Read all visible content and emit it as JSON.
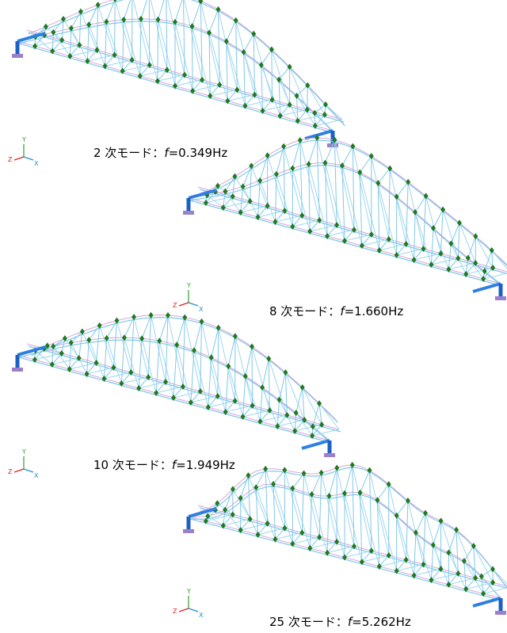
{
  "panels": [
    {
      "caption": {
        "mode": "2 次モード：",
        "symbol": "f",
        "value": "=0.349Hz"
      },
      "axes": {
        "y": "Y",
        "z": "Z",
        "x": "X"
      }
    },
    {
      "caption": {
        "mode": "8 次モード：",
        "symbol": "f",
        "value": "=1.660Hz"
      },
      "axes": {
        "y": "Y",
        "z": "Z",
        "x": "X"
      }
    },
    {
      "caption": {
        "mode": "10 次モード：",
        "symbol": "f",
        "value": "=1.949Hz"
      },
      "axes": {
        "y": "Y",
        "z": "Z",
        "x": "X"
      }
    },
    {
      "caption": {
        "mode": "25 次モード：",
        "symbol": "f",
        "value": "=5.262Hz"
      },
      "axes": {
        "y": "Y",
        "z": "Z",
        "x": "X"
      }
    }
  ]
}
